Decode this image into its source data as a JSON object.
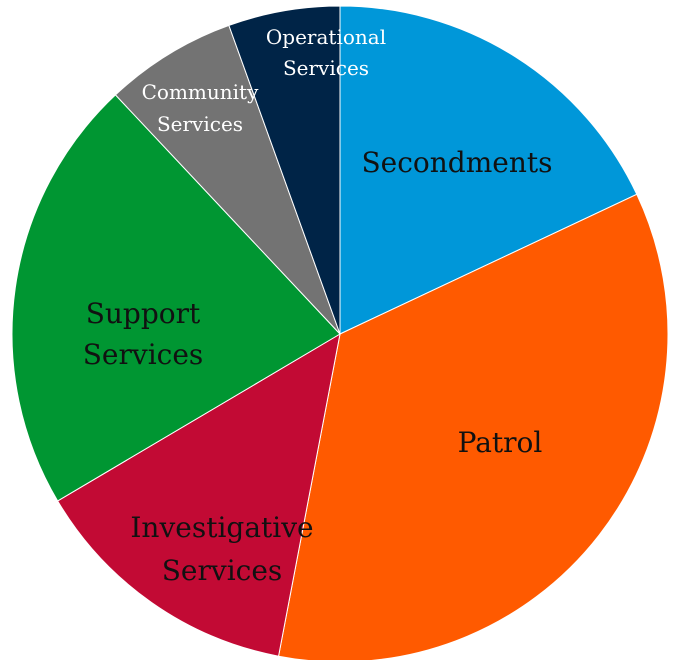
{
  "chart_data": {
    "type": "pie",
    "title": "",
    "start_angle_deg": 0,
    "direction": "clockwise",
    "slices": [
      {
        "label": "Secondments",
        "label_lines": [
          "Secondments"
        ],
        "value": 18.0,
        "color": "#0097D9",
        "text_color": "#111111"
      },
      {
        "label": "Patrol",
        "label_lines": [
          "Patrol"
        ],
        "value": 35.0,
        "color": "#FF5A00",
        "text_color": "#111111"
      },
      {
        "label": "Investigative Services",
        "label_lines": [
          "Investigative",
          "Services"
        ],
        "value": 13.5,
        "color": "#C20A34",
        "text_color": "#111111"
      },
      {
        "label": "Support Services",
        "label_lines": [
          "Support",
          "Services"
        ],
        "value": 21.5,
        "color": "#009632",
        "text_color": "#111111"
      },
      {
        "label": "Community Services",
        "label_lines": [
          "Community",
          "Services"
        ],
        "value": 6.5,
        "color": "#737373",
        "text_color": "#ffffff"
      },
      {
        "label": "Operational Services",
        "label_lines": [
          "Operational",
          "Services"
        ],
        "value": 5.5,
        "color": "#002447",
        "text_color": "#ffffff"
      }
    ]
  }
}
